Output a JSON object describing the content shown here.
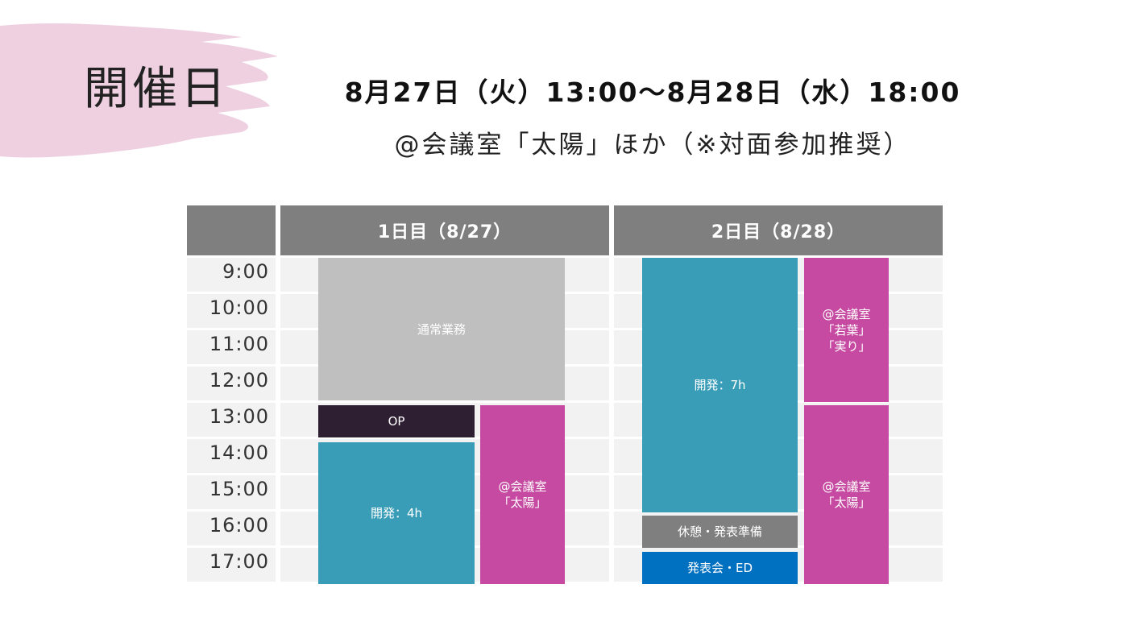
{
  "heading": "開催日",
  "date_range": "8月27日（火）13:00〜8月28日（水）18:00",
  "venue": "@会議室「太陽」ほか（※対面参加推奨）",
  "schedule": {
    "columns": [
      "1日目（8/27）",
      "2日目（8/28）"
    ],
    "times": [
      "9:00",
      "10:00",
      "11:00",
      "12:00",
      "13:00",
      "14:00",
      "15:00",
      "16:00",
      "17:00"
    ],
    "day1_events": [
      {
        "label": "通常業務"
      },
      {
        "label": "OP"
      },
      {
        "label": "開発：4h"
      },
      {
        "label": "@会議室\n「太陽」"
      }
    ],
    "day2_events": [
      {
        "label": "開発：7h"
      },
      {
        "label": "@会議室\n「若葉」\n「実り」"
      },
      {
        "label": "休憩・発表準備"
      },
      {
        "label": "発表会・ED"
      },
      {
        "label": "@会議室\n「太陽」"
      }
    ]
  },
  "colors": {
    "header": "#7f7f7f",
    "slot": "#f2f2f2",
    "regular_work": "#bfbfbf",
    "op": "#2e1f32",
    "development": "#3a9db8",
    "room": "#c64aa1",
    "presentation": "#0070c0",
    "brush": "#eed0e1"
  }
}
